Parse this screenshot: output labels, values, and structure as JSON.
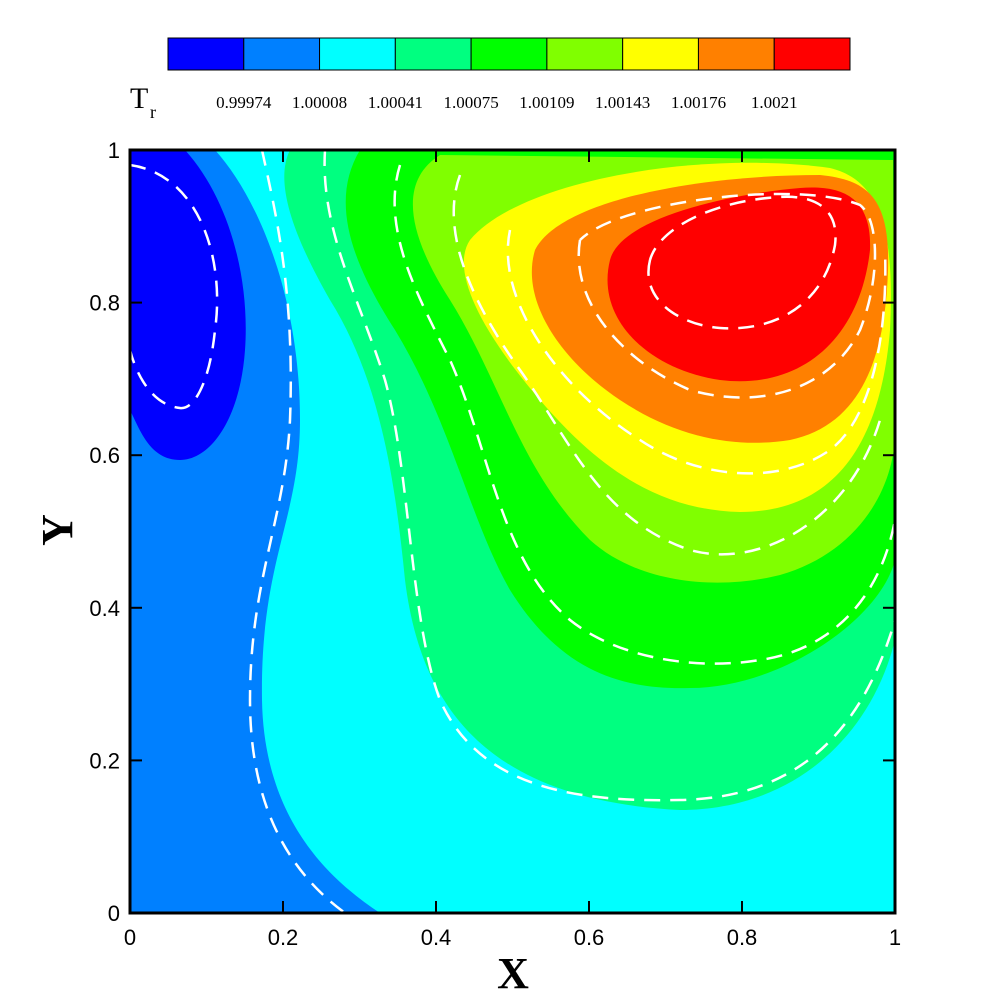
{
  "chart_data": {
    "type": "contour",
    "xlabel": "X",
    "ylabel": "Y",
    "colorbar_title": "T",
    "colorbar_title_subscript": "r",
    "levels": [
      0.99974,
      1.00008,
      1.00041,
      1.00075,
      1.00109,
      1.00143,
      1.00176,
      1.0021
    ],
    "colors": [
      "#0000ff",
      "#0080ff",
      "#00ffff",
      "#00ff80",
      "#00ff00",
      "#80ff00",
      "#ffff00",
      "#ff8000",
      "#ff0000"
    ],
    "xlim": [
      0,
      1
    ],
    "ylim": [
      0,
      1
    ],
    "xticks": [
      0,
      0.2,
      0.4,
      0.6,
      0.8,
      1
    ],
    "yticks": [
      0,
      0.2,
      0.4,
      0.6,
      0.8,
      1
    ]
  }
}
